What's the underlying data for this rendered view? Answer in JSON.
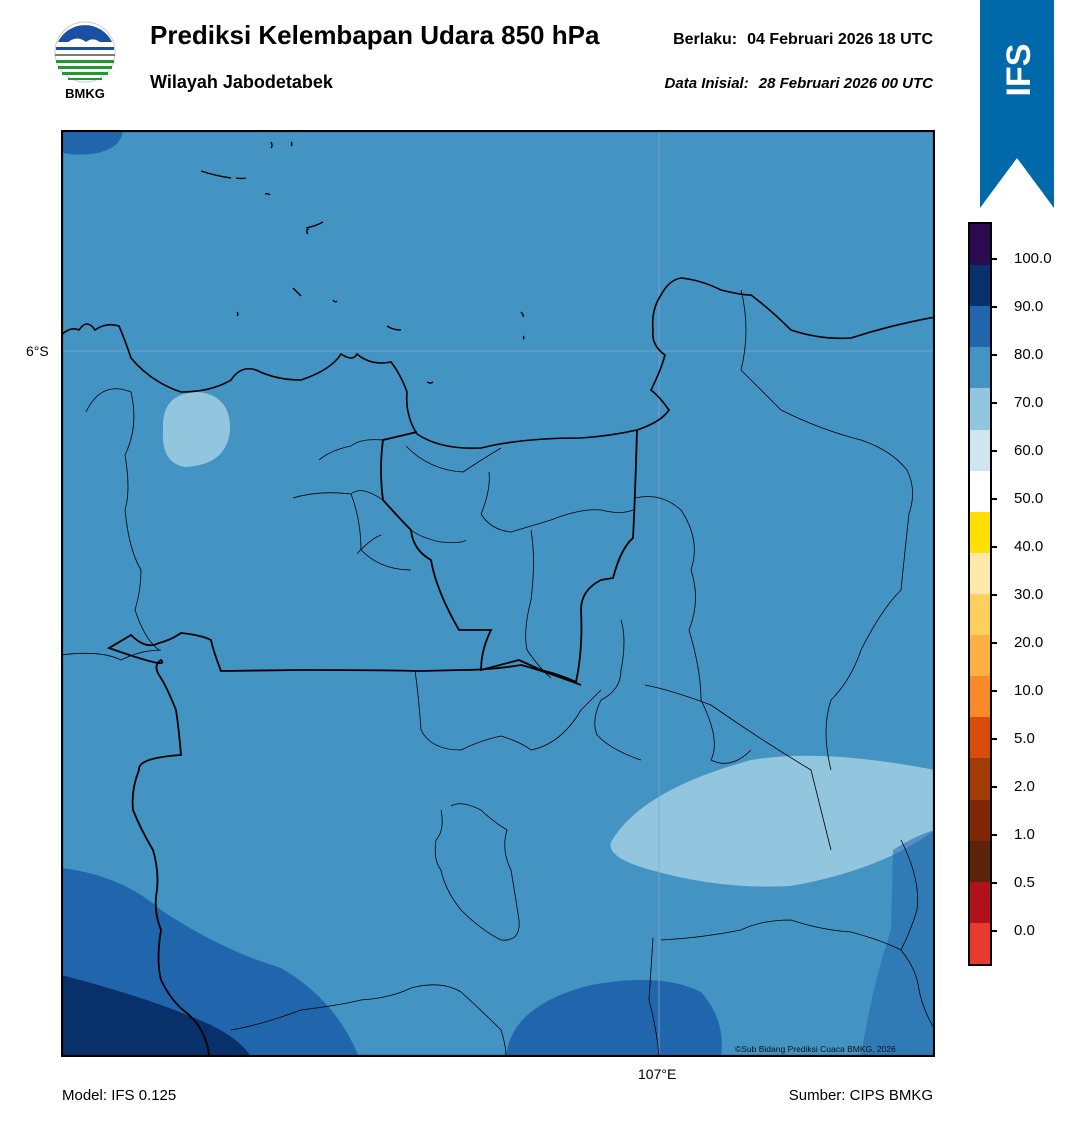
{
  "header": {
    "title": "Prediksi Kelembapan Udara 850 hPa",
    "subtitle": "Wilayah Jabodetabek",
    "valid_label": "Berlaku:",
    "valid_value": "04 Februari 2026 18 UTC",
    "init_label": "Data Inisial:",
    "init_value": "28 Februari 2026 00 UTC",
    "logo_text": "BMKG",
    "badge_text": "IFS"
  },
  "map": {
    "lat_label": "6°S",
    "lon_label": "107°E",
    "copyright": "©Sub Bidang Prediksi Cuaca BMKG, 2026"
  },
  "footer": {
    "model": "Model: IFS 0.125",
    "source": "Sumber: CIPS BMKG"
  },
  "colorbar": {
    "ticks": [
      "100.0",
      "90.0",
      "80.0",
      "70.0",
      "60.0",
      "50.0",
      "40.0",
      "30.0",
      "20.0",
      "10.0",
      "5.0",
      "2.0",
      "1.0",
      "0.5",
      "0.0"
    ],
    "colors": [
      "#2b0a4f",
      "#08306b",
      "#2166ac",
      "#4393c3",
      "#92c5de",
      "#d1e5f0",
      "#ffffff",
      "#ffe000",
      "#ffe9a8",
      "#fecf5c",
      "#fdb142",
      "#f98a2a",
      "#d94c0a",
      "#a33b06",
      "#7f2704",
      "#5c2308",
      "#b0111a",
      "#e83a2e"
    ]
  },
  "colors": {
    "badge": "#0069aa",
    "base_field": "#4393c3",
    "light_field": "#92c5de",
    "mid_field": "#2166ac",
    "dark_field": "#08306b"
  }
}
